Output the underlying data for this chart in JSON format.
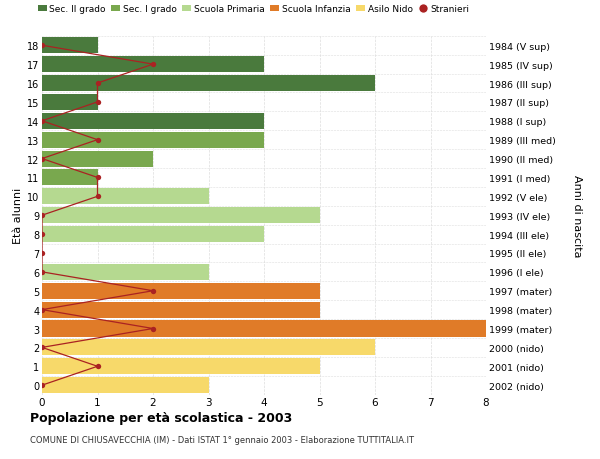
{
  "ages": [
    18,
    17,
    16,
    15,
    14,
    13,
    12,
    11,
    10,
    9,
    8,
    7,
    6,
    5,
    4,
    3,
    2,
    1,
    0
  ],
  "years": [
    "1984 (V sup)",
    "1985 (IV sup)",
    "1986 (III sup)",
    "1987 (II sup)",
    "1988 (I sup)",
    "1989 (III med)",
    "1990 (II med)",
    "1991 (I med)",
    "1992 (V ele)",
    "1993 (IV ele)",
    "1994 (III ele)",
    "1995 (II ele)",
    "1996 (I ele)",
    "1997 (mater)",
    "1998 (mater)",
    "1999 (mater)",
    "2000 (nido)",
    "2001 (nido)",
    "2002 (nido)"
  ],
  "bar_values": [
    1,
    4,
    6,
    1,
    4,
    4,
    2,
    1,
    3,
    5,
    4,
    0,
    3,
    5,
    5,
    8,
    6,
    5,
    3
  ],
  "bar_colors": [
    "#4a7a3d",
    "#4a7a3d",
    "#4a7a3d",
    "#4a7a3d",
    "#4a7a3d",
    "#79a84e",
    "#79a84e",
    "#79a84e",
    "#b5d990",
    "#b5d990",
    "#b5d990",
    "#b5d990",
    "#b5d990",
    "#e07b28",
    "#e07b28",
    "#e07b28",
    "#f7d96a",
    "#f7d96a",
    "#f7d96a"
  ],
  "stranieri_values": [
    0,
    2,
    1,
    1,
    0,
    1,
    0,
    1,
    1,
    0,
    0,
    0,
    0,
    2,
    0,
    2,
    0,
    1,
    0
  ],
  "stranieri_color": "#aa2222",
  "legend_labels": [
    "Sec. II grado",
    "Sec. I grado",
    "Scuola Primaria",
    "Scuola Infanzia",
    "Asilo Nido",
    "Stranieri"
  ],
  "legend_colors": [
    "#4a7a3d",
    "#79a84e",
    "#b5d990",
    "#e07b28",
    "#f7d96a",
    "#aa2222"
  ],
  "title": "Popolazione per età scolastica - 2003",
  "subtitle": "COMUNE DI CHIUSAVECCHIA (IM) - Dati ISTAT 1° gennaio 2003 - Elaborazione TUTTITALIA.IT",
  "ylabel": "Età alunni",
  "ylabel2": "Anni di nascita",
  "xlim": [
    0,
    8
  ],
  "xticks": [
    0,
    1,
    2,
    3,
    4,
    5,
    6,
    7,
    8
  ],
  "bg_color": "#ffffff",
  "plot_bg": "#f9f9f9",
  "grid_color": "#dddddd"
}
